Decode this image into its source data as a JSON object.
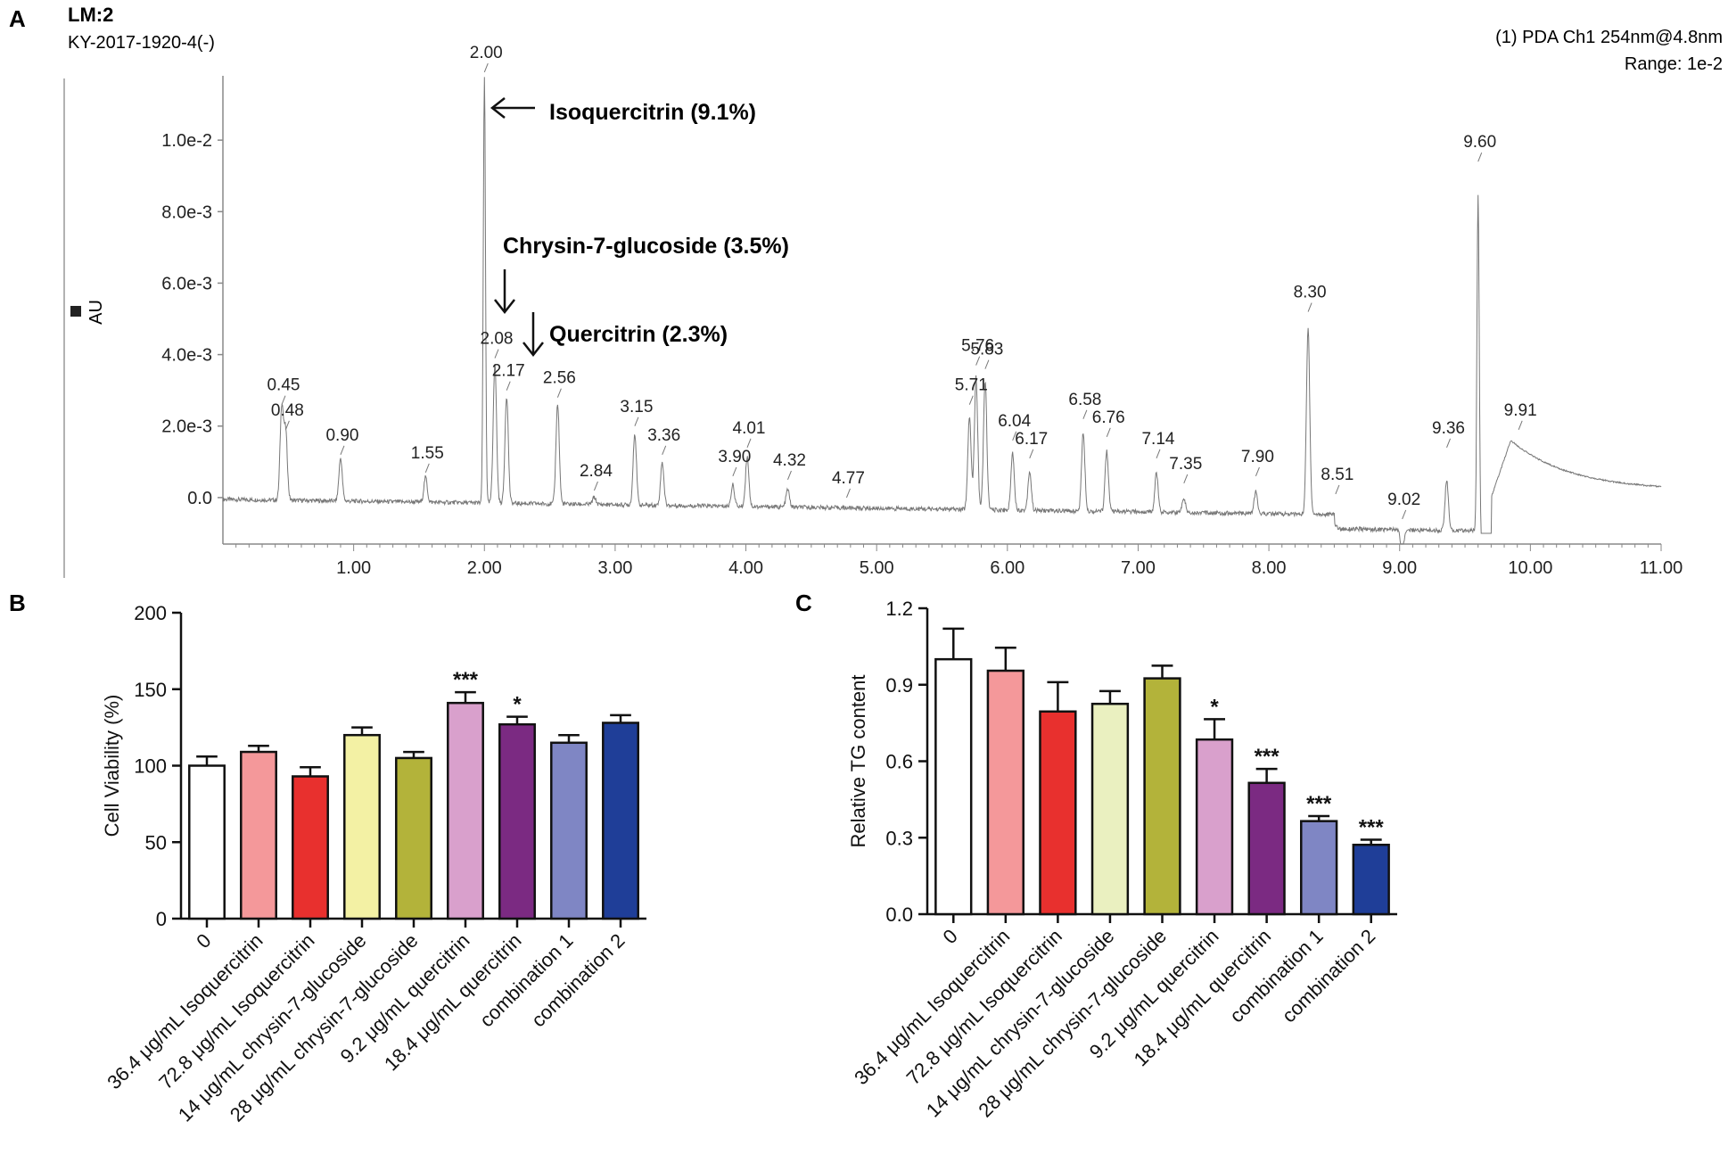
{
  "panelA": {
    "panel_label": "A",
    "sample_title": "LM:2",
    "sample_id": "KY-2017-1920-4(-)",
    "detector": "(1) PDA Ch1 254nm@4.8nm",
    "range": "Range: 1e-2",
    "y_axis_label": "AU",
    "annotations": [
      {
        "text": "Isoquercitrin (9.1%)",
        "arrow": "left",
        "target_rt": 2.0
      },
      {
        "text": "Chrysin-7-glucoside (3.5%)",
        "arrow": "down",
        "target_rt": 2.08
      },
      {
        "text": "Quercitrin (2.3%)",
        "arrow": "down",
        "target_rt": 2.17
      }
    ]
  },
  "panelB": {
    "panel_label": "B"
  },
  "panelC": {
    "panel_label": "C"
  },
  "chart_data": [
    {
      "type": "line",
      "title": "LM:2",
      "xlabel": "",
      "ylabel": "AU",
      "xlim": [
        0,
        11
      ],
      "ylim": [
        -0.0013,
        0.0118
      ],
      "x_ticks": [
        1,
        2,
        3,
        4,
        5,
        6,
        7,
        8,
        9,
        10,
        11
      ],
      "x_tick_labels": [
        "1.00",
        "2.00",
        "3.00",
        "4.00",
        "5.00",
        "6.00",
        "7.00",
        "8.00",
        "9.00",
        "10.00",
        "11.00"
      ],
      "y_ticks": [
        0,
        0.002,
        0.004,
        0.006,
        0.008,
        0.01
      ],
      "y_tick_labels": [
        "0.0",
        "2.0e-3",
        "4.0e-3",
        "6.0e-3",
        "8.0e-3",
        "1.0e-2"
      ],
      "peaks": [
        {
          "rt": 0.45,
          "label": "0.45",
          "height": 0.0023
        },
        {
          "rt": 0.48,
          "label": "0.48",
          "height": 0.0016
        },
        {
          "rt": 0.9,
          "label": "0.90",
          "height": 0.0009
        },
        {
          "rt": 1.55,
          "label": "1.55",
          "height": 0.0004
        },
        {
          "rt": 2.0,
          "label": "2.00",
          "height": 0.0116
        },
        {
          "rt": 2.08,
          "label": "2.08",
          "height": 0.0036
        },
        {
          "rt": 2.17,
          "label": "2.17",
          "height": 0.0027
        },
        {
          "rt": 2.56,
          "label": "2.56",
          "height": 0.0025
        },
        {
          "rt": 2.84,
          "label": "2.84",
          "height": -0.0001
        },
        {
          "rt": 3.15,
          "label": "3.15",
          "height": 0.0017
        },
        {
          "rt": 3.36,
          "label": "3.36",
          "height": 0.0009
        },
        {
          "rt": 3.9,
          "label": "3.90",
          "height": 0.0003
        },
        {
          "rt": 4.01,
          "label": "4.01",
          "height": 0.0011
        },
        {
          "rt": 4.32,
          "label": "4.32",
          "height": 0.0002
        },
        {
          "rt": 4.77,
          "label": "4.77",
          "height": -0.0003
        },
        {
          "rt": 5.71,
          "label": "5.71",
          "height": 0.0023
        },
        {
          "rt": 5.76,
          "label": "5.76",
          "height": 0.0034
        },
        {
          "rt": 5.83,
          "label": "5.83",
          "height": 0.0033
        },
        {
          "rt": 6.04,
          "label": "6.04",
          "height": 0.0013
        },
        {
          "rt": 6.17,
          "label": "6.17",
          "height": 0.0008
        },
        {
          "rt": 6.58,
          "label": "6.58",
          "height": 0.0019
        },
        {
          "rt": 6.76,
          "label": "6.76",
          "height": 0.0014
        },
        {
          "rt": 7.14,
          "label": "7.14",
          "height": 0.0008
        },
        {
          "rt": 7.35,
          "label": "7.35",
          "height": 0.0001
        },
        {
          "rt": 7.9,
          "label": "7.90",
          "height": 0.0003
        },
        {
          "rt": 8.3,
          "label": "8.30",
          "height": 0.0049
        },
        {
          "rt": 8.51,
          "label": "8.51",
          "height": -0.0002
        },
        {
          "rt": 9.02,
          "label": "9.02",
          "height": -0.0009
        },
        {
          "rt": 9.36,
          "label": "9.36",
          "height": 0.0011
        },
        {
          "rt": 9.6,
          "label": "9.60",
          "height": 0.0091
        },
        {
          "rt": 9.91,
          "label": "9.91",
          "height": 0.0016
        }
      ]
    },
    {
      "type": "bar",
      "title": "",
      "xlabel": "",
      "ylabel": "Cell Viability (%)",
      "ylim": [
        0,
        200
      ],
      "y_ticks": [
        0,
        50,
        100,
        150,
        200
      ],
      "categories": [
        "0",
        "36.4 μg/mL Isoquercitrin",
        "72.8 μg/mL Isoquercitrin",
        "14 μg/mL chrysin-7-glucoside",
        "28 μg/mL chrysin-7-glucoside",
        "9.2 μg/mL quercitrin",
        "18.4 μg/mL quercitrin",
        "combination 1",
        "combination 2"
      ],
      "values": [
        100,
        109,
        93,
        120,
        105,
        141,
        127,
        115,
        128
      ],
      "errors": [
        6,
        4,
        6,
        5,
        4,
        7,
        5,
        5,
        5
      ],
      "significance": [
        "",
        "",
        "",
        "",
        "",
        "***",
        "*",
        "",
        ""
      ],
      "colors": [
        "#ffffff",
        "#f4989a",
        "#e8302e",
        "#f3f1a4",
        "#b3b33a",
        "#d9a0cc",
        "#7b2a82",
        "#7f86c4",
        "#1f3e98"
      ]
    },
    {
      "type": "bar",
      "title": "",
      "xlabel": "",
      "ylabel": "Relative TG content",
      "ylim": [
        0,
        1.2
      ],
      "y_ticks": [
        0,
        0.3,
        0.6,
        0.9,
        1.2
      ],
      "y_tick_labels": [
        "0.0",
        "0.3",
        "0.6",
        "0.9",
        "1.2"
      ],
      "categories": [
        "0",
        "36.4 μg/mL Isoquercitrin",
        "72.8 μg/mL Isoquercitrin",
        "14 μg/mL chrysin-7-glucoside",
        "28 μg/mL chrysin-7-glucoside",
        "9.2 μg/mL quercitrin",
        "18.4 μg/mL quercitrin",
        "combination 1",
        "combination 2"
      ],
      "values": [
        1.0,
        0.955,
        0.795,
        0.825,
        0.925,
        0.685,
        0.515,
        0.365,
        0.272
      ],
      "errors": [
        0.12,
        0.09,
        0.115,
        0.05,
        0.05,
        0.08,
        0.055,
        0.02,
        0.02
      ],
      "significance": [
        "",
        "",
        "",
        "",
        "",
        "*",
        "***",
        "***",
        "***"
      ],
      "colors": [
        "#ffffff",
        "#f4989a",
        "#e8302e",
        "#eaf0c0",
        "#b3b33a",
        "#d9a0cc",
        "#7b2a82",
        "#7f86c4",
        "#1f3e98"
      ]
    }
  ]
}
